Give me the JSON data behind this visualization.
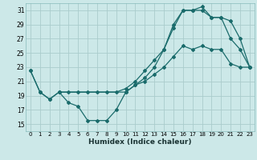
{
  "xlabel": "Humidex (Indice chaleur)",
  "ylabel": "",
  "bg_color": "#cce8e8",
  "grid_color": "#aacccc",
  "line_color": "#1a6b6b",
  "xlim": [
    -0.5,
    23.5
  ],
  "ylim": [
    14.0,
    32.0
  ],
  "xticks": [
    0,
    1,
    2,
    3,
    4,
    5,
    6,
    7,
    8,
    9,
    10,
    11,
    12,
    13,
    14,
    15,
    16,
    17,
    18,
    19,
    20,
    21,
    22,
    23
  ],
  "yticks": [
    15,
    17,
    19,
    21,
    23,
    25,
    27,
    29,
    31
  ],
  "line1_x": [
    0,
    1,
    2,
    3,
    4,
    5,
    6,
    7,
    8,
    9,
    10,
    11,
    12,
    13,
    14,
    15,
    16,
    17,
    18,
    19,
    20,
    21,
    22,
    23
  ],
  "line1_y": [
    22.5,
    19.5,
    18.5,
    19.5,
    18.0,
    17.5,
    15.5,
    15.5,
    15.5,
    17.0,
    19.5,
    20.5,
    21.0,
    22.0,
    23.0,
    24.5,
    26.0,
    25.5,
    26.0,
    25.5,
    25.5,
    23.5,
    23.0,
    23.0
  ],
  "line2_x": [
    0,
    1,
    2,
    3,
    4,
    5,
    6,
    7,
    8,
    9,
    10,
    11,
    12,
    13,
    14,
    15,
    16,
    17,
    18,
    19,
    20,
    21,
    22,
    23
  ],
  "line2_y": [
    22.5,
    19.5,
    18.5,
    19.5,
    19.5,
    19.5,
    19.5,
    19.5,
    19.5,
    19.5,
    20.0,
    21.0,
    22.5,
    24.0,
    25.5,
    28.5,
    31.0,
    31.0,
    31.0,
    30.0,
    30.0,
    27.0,
    25.5,
    23.0
  ],
  "line3_x": [
    3,
    10,
    11,
    12,
    13,
    14,
    15,
    16,
    17,
    18,
    19,
    20,
    21,
    22,
    23
  ],
  "line3_y": [
    19.5,
    19.5,
    20.5,
    21.5,
    23.0,
    25.5,
    29.0,
    31.0,
    31.0,
    31.5,
    30.0,
    30.0,
    29.5,
    27.0,
    23.0
  ]
}
